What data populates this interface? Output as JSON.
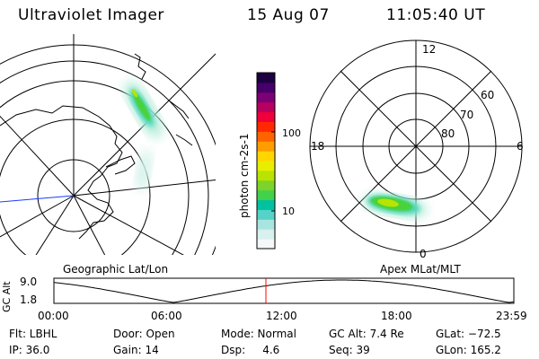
{
  "header": {
    "instrument": "Ultraviolet Imager",
    "date": "15 Aug 07",
    "time": "11:05:40 UT"
  },
  "colors": {
    "map_lines": "#000000",
    "aurora_green": "#49d23a",
    "aurora_core": "#b8e400",
    "aurora_halo": "#b4ecd8",
    "aurora_cyan": "#48d6bc",
    "track_marker": "#ff0000",
    "noon_meridian": "#1a3cff"
  },
  "geo_panel": {
    "label": "Geographic Lat/Lon"
  },
  "colorbar": {
    "unit_label": "photon cm-2s-1",
    "ticks": [
      "100",
      "10"
    ],
    "scale": "log",
    "colors": [
      "#f4f8f8",
      "#d8f0ee",
      "#a9e5e0",
      "#55d3c8",
      "#00c2a0",
      "#43d04a",
      "#7ed32a",
      "#b9e300",
      "#e9ee00",
      "#ffd600",
      "#ff9c00",
      "#ff6300",
      "#ff2800",
      "#ef003a",
      "#b80060",
      "#7c0076",
      "#45006a",
      "#1d0040"
    ]
  },
  "polar_panel": {
    "label": "Apex MLat/MLT",
    "mlt_labels": {
      "top": "12",
      "left": "18",
      "right": "6",
      "bottom": "0"
    },
    "lat_labels": [
      "60",
      "70",
      "80"
    ]
  },
  "orbit_plot": {
    "ylabel": "GC Alt",
    "y_ticks": [
      "9.0",
      "1.8"
    ],
    "x_ticks": [
      "00:00",
      "06:00",
      "12:00",
      "18:00",
      "23:59"
    ]
  },
  "status": {
    "flt": "Flt: LBHL",
    "ip": "IP: 36.0",
    "door": "Door: Open",
    "gain": "Gain: 14",
    "mode": "Mode: Normal",
    "dsp": "Dsp:     4.6",
    "gc_alt": "GC Alt: 7.4 Re",
    "seq": "Seq: 39",
    "glat": "GLat: −72.5",
    "glon": "GLon: 165.2"
  }
}
